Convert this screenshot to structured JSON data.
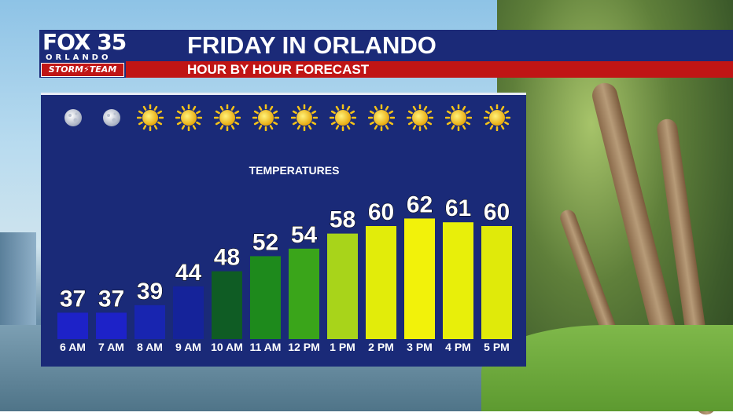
{
  "brand": {
    "logo_fox": "FOX 35",
    "logo_city": "ORLANDO",
    "logo_team": "STORM⚡TEAM"
  },
  "header": {
    "title": "FRIDAY IN ORLANDO",
    "subtitle": "HOUR BY HOUR FORECAST"
  },
  "colors": {
    "header_blue": "#1b2a78",
    "header_red": "#c01515",
    "panel_blue": "#1a2a78"
  },
  "chart_data": {
    "type": "bar",
    "title": "TEMPERATURES",
    "categories": [
      "6 AM",
      "7 AM",
      "8 AM",
      "9 AM",
      "10 AM",
      "11 AM",
      "12 PM",
      "1 PM",
      "2 PM",
      "3 PM",
      "4 PM",
      "5 PM"
    ],
    "values": [
      37,
      37,
      39,
      44,
      48,
      52,
      54,
      58,
      60,
      62,
      61,
      60
    ],
    "bar_colors": [
      "#1d22c8",
      "#1d22c8",
      "#1825b0",
      "#15239a",
      "#0f5c24",
      "#1e8a1c",
      "#3aa51a",
      "#a8d41a",
      "#e2ec0a",
      "#f2f20a",
      "#e8ef0a",
      "#e0ea0a"
    ],
    "conditions": [
      "clear-night-icon",
      "clear-night-icon",
      "sun-icon",
      "sun-icon",
      "sun-icon",
      "sun-icon",
      "sun-icon",
      "sun-icon",
      "sun-icon",
      "sun-icon",
      "sun-icon",
      "sun-icon"
    ],
    "xlabel": "",
    "ylabel": "",
    "grid": false,
    "legend": "none"
  }
}
